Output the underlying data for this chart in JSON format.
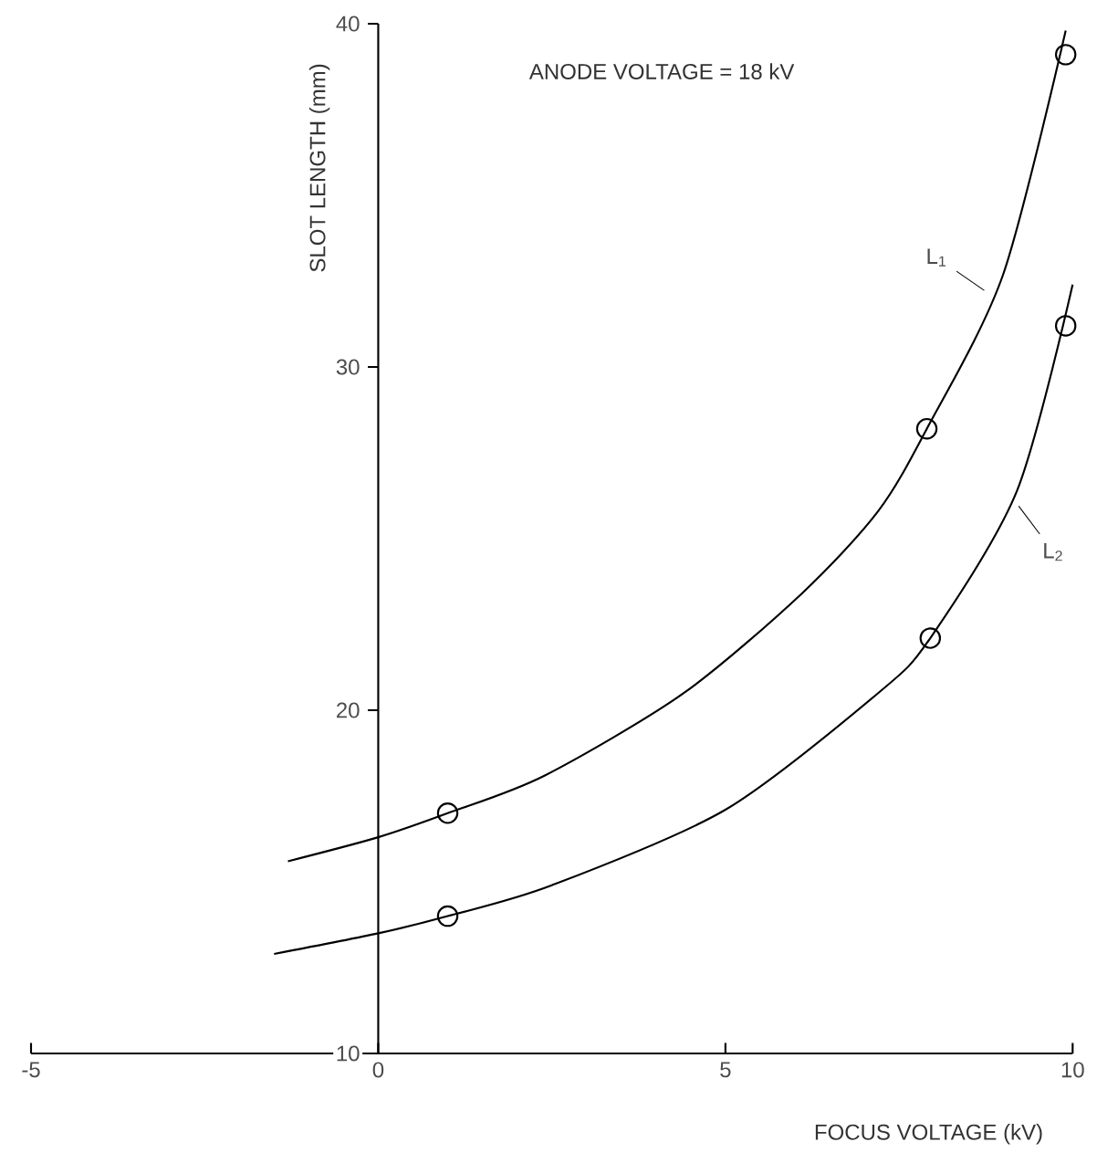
{
  "chart_data": {
    "type": "line",
    "xlabel": "FOCUS VOLTAGE (kV)",
    "ylabel": "SLOT LENGTH (mm)",
    "annotations": [
      "ANODE VOLTAGE = 18 kV"
    ],
    "xlim": [
      -5,
      10
    ],
    "ylim": [
      10,
      40
    ],
    "xticks": [
      -5,
      0,
      5,
      10
    ],
    "yticks": [
      10,
      20,
      30,
      40
    ],
    "series": [
      {
        "name": "L$_{1}$",
        "marker": "none",
        "color": "#000000",
        "x": [
          -1.3,
          0,
          1,
          2.4,
          4.4,
          6.1,
          7.2,
          7.9,
          9,
          9.9
        ],
        "values": [
          15.6,
          16.3,
          17.0,
          18.1,
          20.5,
          23.4,
          25.8,
          28.2,
          32.7,
          39.8
        ]
      },
      {
        "name": "L$_{2}$",
        "marker": "none",
        "color": "#000000",
        "x": [
          -1.5,
          0,
          1,
          2.5,
          5,
          7.2,
          7.95,
          9.2,
          10
        ],
        "values": [
          12.9,
          13.5,
          14.0,
          14.9,
          17.1,
          20.5,
          22.1,
          26.4,
          32.4
        ]
      },
      {
        "type": "scatter",
        "marker": "circle",
        "color": "#000000",
        "x": [
          1,
          7.9,
          9.9
        ],
        "values": [
          17.0,
          28.2,
          39.1
        ]
      },
      {
        "type": "scatter",
        "marker": "circle",
        "color": "#000000",
        "x": [
          1,
          7.95,
          9.9
        ],
        "values": [
          14.0,
          22.1,
          31.2
        ]
      }
    ]
  }
}
